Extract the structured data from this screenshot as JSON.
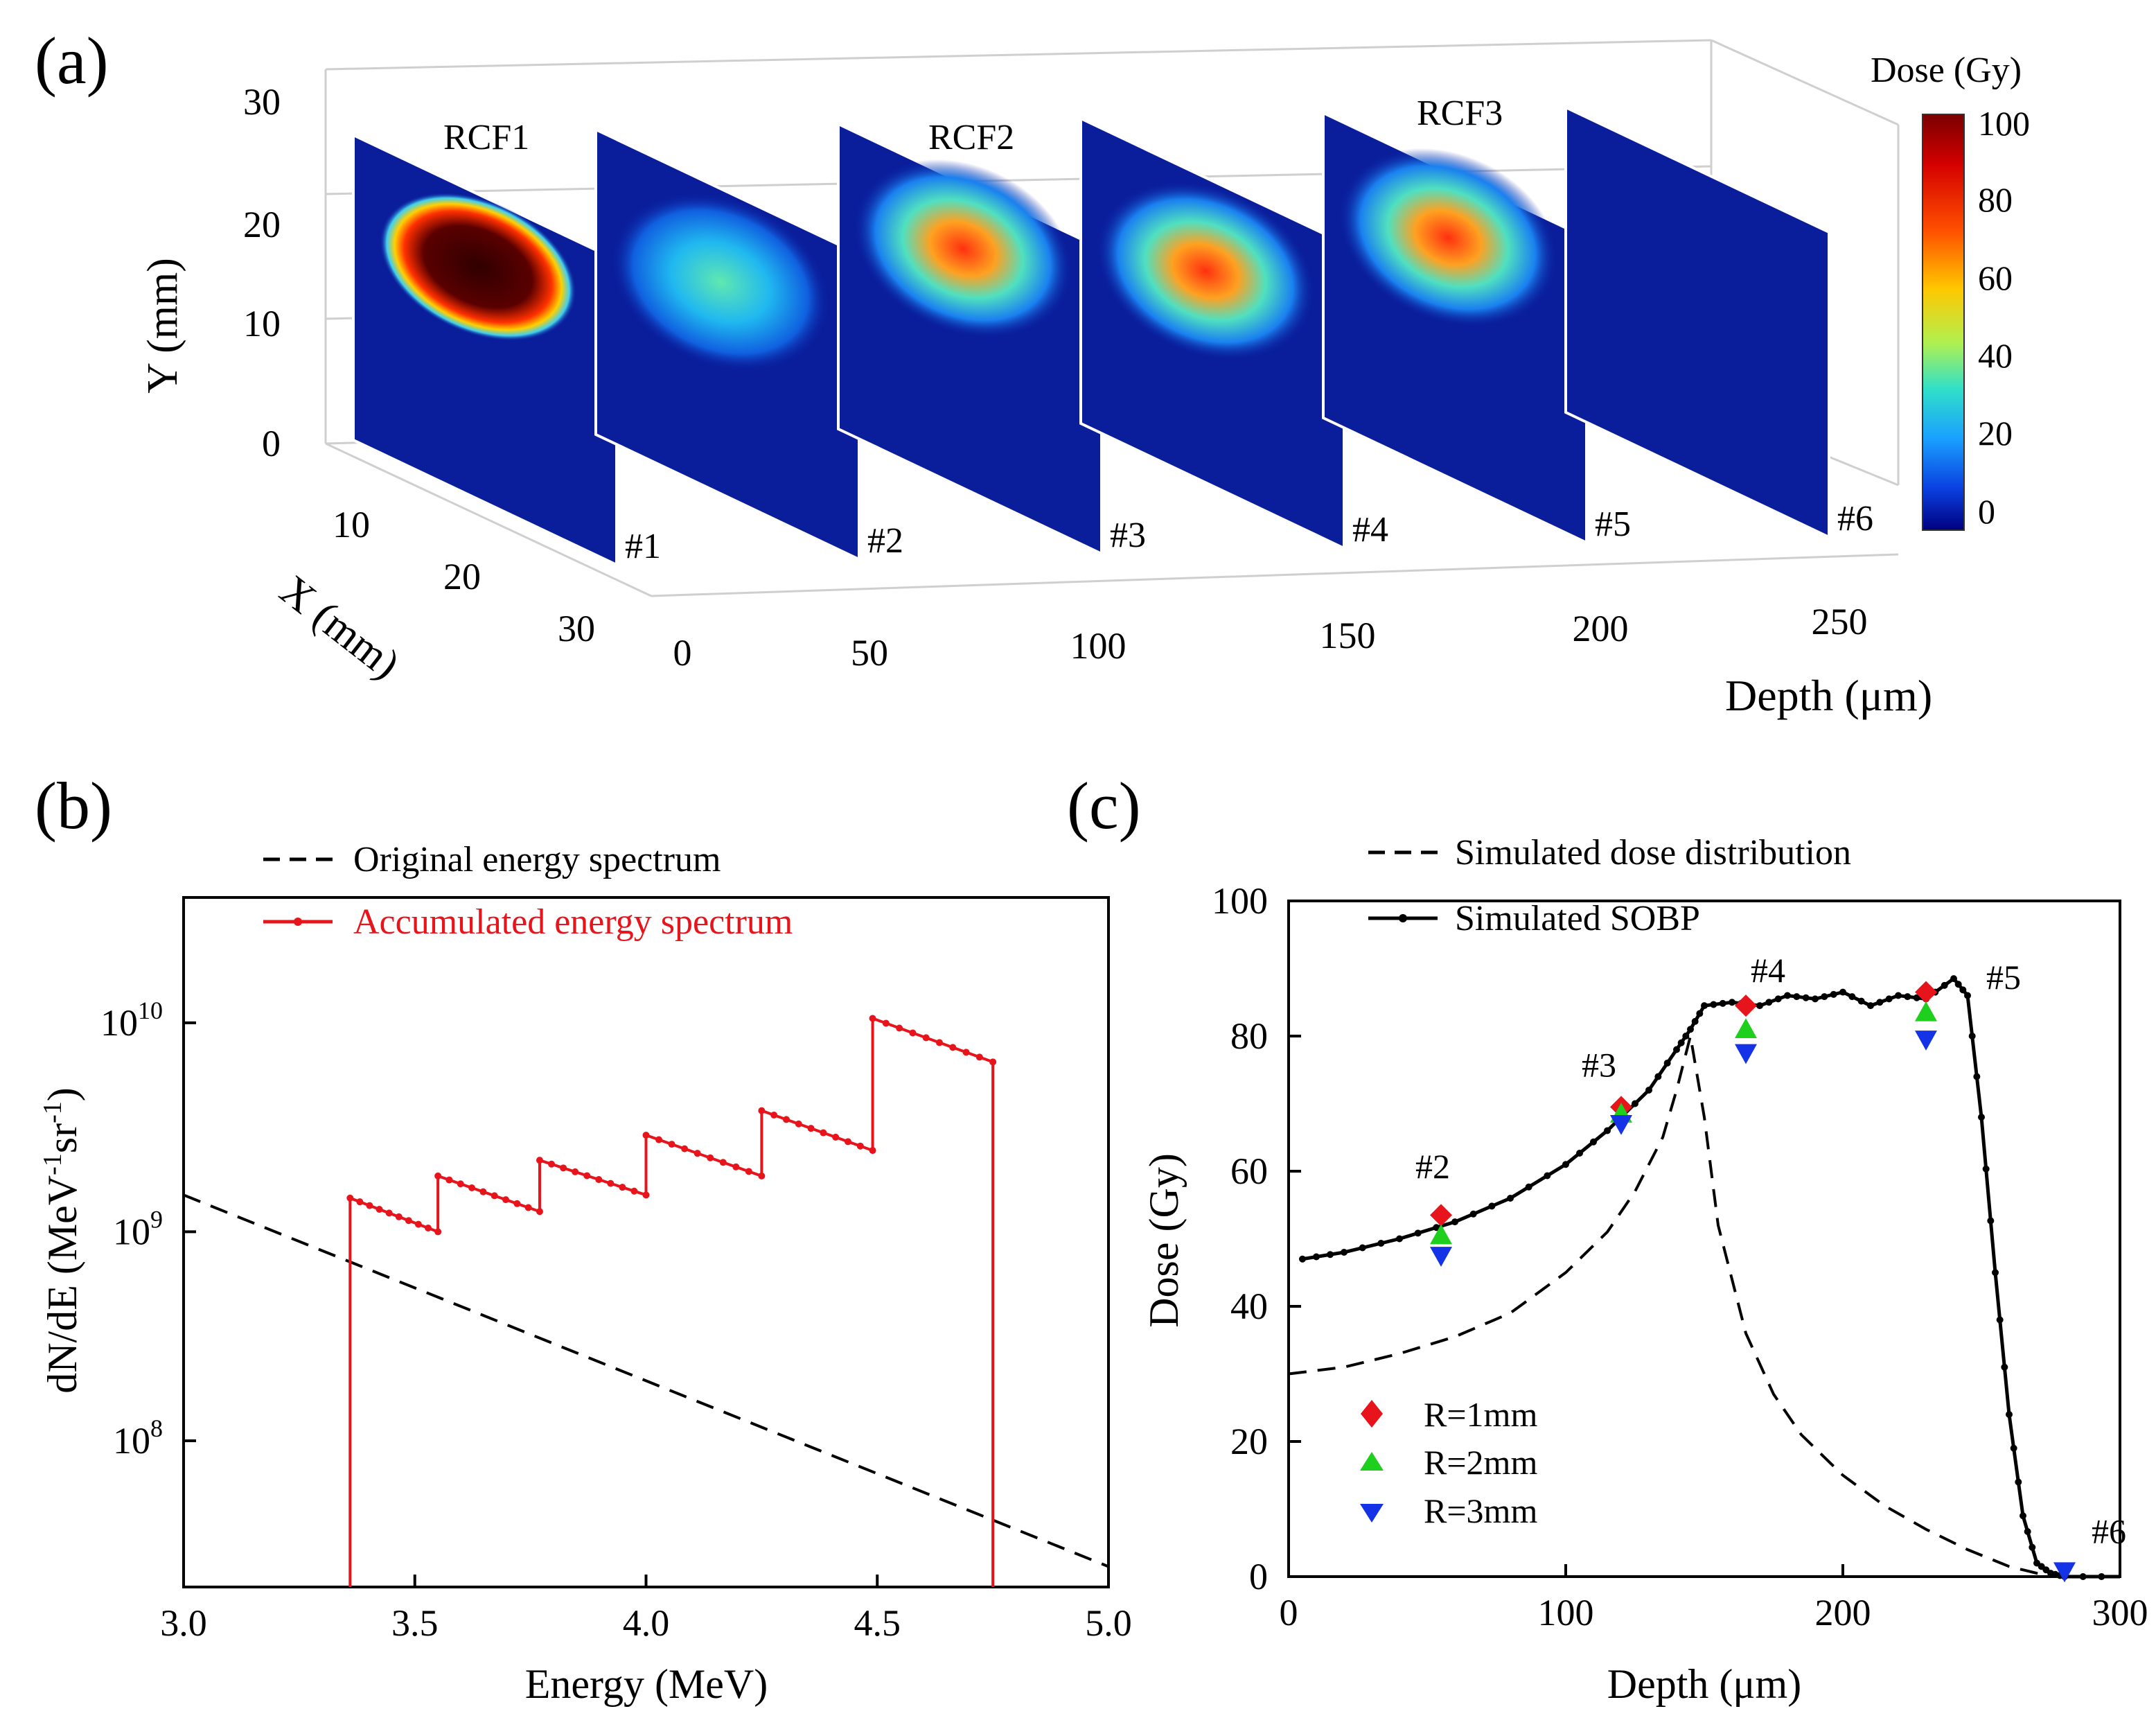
{
  "panel_labels": {
    "a": "(a)",
    "b": "(b)",
    "c": "(c)"
  },
  "colors": {
    "red": "#e8141c",
    "black": "#000000",
    "green": "#1ecf1e",
    "blue": "#1432e6",
    "film_bg": "#0a1e9c",
    "axis_gray": "#d8d8d8"
  },
  "chart_data": [
    {
      "type": "heatmap",
      "panel": "(a)",
      "title": "",
      "colorbar": {
        "title": "Dose (Gy)",
        "ticks": [
          "100",
          "80",
          "60",
          "40",
          "20",
          "0"
        ],
        "range": [
          0,
          100
        ]
      },
      "ylabel": "Y (mm)",
      "xlabel": "X (mm)",
      "zlabel": "Depth (μm)",
      "y_ticks": [
        "30",
        "20",
        "10",
        "0"
      ],
      "x_ticks": [
        "10",
        "20",
        "30"
      ],
      "depth_ticks": [
        "0",
        "50",
        "100",
        "150",
        "200",
        "250"
      ],
      "group_labels": [
        "RCF1",
        "RCF2",
        "RCF3"
      ],
      "films": [
        {
          "id": "#1",
          "depth": 0,
          "peak_dose": 100,
          "spot_level": "saturated"
        },
        {
          "id": "#2",
          "depth": 50,
          "peak_dose": 40,
          "spot_level": "low"
        },
        {
          "id": "#3",
          "depth": 100,
          "peak_dose": 75,
          "spot_level": "high"
        },
        {
          "id": "#4",
          "depth": 150,
          "peak_dose": 85,
          "spot_level": "high"
        },
        {
          "id": "#5",
          "depth": 200,
          "peak_dose": 88,
          "spot_level": "high"
        },
        {
          "id": "#6",
          "depth": 250,
          "peak_dose": 0,
          "spot_level": "none"
        }
      ]
    },
    {
      "type": "line",
      "panel": "(b)",
      "title": "",
      "xlabel": "Energy (MeV)",
      "ylabel": "dN/dE (MeV⁻¹sr⁻¹)",
      "ylabel_main": "dN/dE (MeV",
      "ylabel_sup1": "-1",
      "ylabel_mid": "sr",
      "ylabel_sup2": "-1",
      "ylabel_end": ")",
      "xlim": [
        3.0,
        5.0
      ],
      "ylim_log10": [
        7.3,
        10.6
      ],
      "x_ticks": [
        "3.0",
        "3.5",
        "4.0",
        "4.5",
        "5.0"
      ],
      "y_ticks": [
        {
          "base": "10",
          "exp": "8",
          "log10": 8
        },
        {
          "base": "10",
          "exp": "9",
          "log10": 9
        },
        {
          "base": "10",
          "exp": "10",
          "log10": 10
        }
      ],
      "legend": [
        "Original energy spectrum",
        "Accumulated energy spectrum"
      ],
      "series": [
        {
          "name": "Original energy spectrum",
          "style": "dashed",
          "x": [
            3.0,
            5.0
          ],
          "y": [
            1500000000.0,
            25000000.0
          ]
        },
        {
          "name": "Accumulated energy spectrum",
          "style": "solid-dotted",
          "segments": [
            {
              "x": [
                3.36,
                3.55
              ],
              "y": [
                1450000000.0,
                1000000000.0
              ]
            },
            {
              "x": [
                3.55,
                3.77
              ],
              "y": [
                1850000000.0,
                1250000000.0
              ]
            },
            {
              "x": [
                3.77,
                4.0
              ],
              "y": [
                2200000000.0,
                1500000000.0
              ]
            },
            {
              "x": [
                4.0,
                4.25
              ],
              "y": [
                2900000000.0,
                1850000000.0
              ]
            },
            {
              "x": [
                4.25,
                4.49
              ],
              "y": [
                3800000000.0,
                2450000000.0
              ]
            },
            {
              "x": [
                4.49,
                4.75
              ],
              "y": [
                10500000000.0,
                6500000000.0
              ]
            }
          ]
        }
      ]
    },
    {
      "type": "line",
      "panel": "(c)",
      "title": "",
      "xlabel": "Depth (μm)",
      "ylabel": "Dose (Gy)",
      "xlim": [
        0,
        300
      ],
      "ylim": [
        0,
        100
      ],
      "x_ticks": [
        "0",
        "100",
        "200",
        "300"
      ],
      "y_ticks": [
        "0",
        "20",
        "40",
        "60",
        "80",
        "100"
      ],
      "legend": [
        "Simulated dose distribution",
        "Simulated SOBP"
      ],
      "marker_legend": [
        "R=1mm",
        "R=2mm",
        "R=3mm"
      ],
      "series": [
        {
          "name": "Simulated dose distribution",
          "style": "dashed",
          "x": [
            0,
            20,
            40,
            60,
            80,
            100,
            115,
            125,
            135,
            140,
            145,
            150,
            155,
            165,
            175,
            185,
            200,
            215,
            230,
            245,
            260,
            270,
            280
          ],
          "y": [
            30,
            31,
            33,
            35.5,
            39,
            45,
            51,
            57,
            65,
            72,
            80,
            68,
            52,
            36,
            27,
            21,
            15,
            10.5,
            7,
            4,
            1.5,
            0.5,
            0
          ]
        },
        {
          "name": "Simulated SOBP",
          "style": "solid-dotted",
          "x": [
            5,
            20,
            40,
            60,
            80,
            100,
            115,
            130,
            140,
            145,
            150,
            160,
            170,
            180,
            190,
            200,
            210,
            220,
            230,
            240,
            245,
            250,
            255,
            260,
            265,
            270,
            275,
            280,
            300
          ],
          "y": [
            47,
            48,
            50,
            52.5,
            56,
            61,
            66,
            72,
            78,
            81,
            84.5,
            85,
            84.5,
            86,
            85.5,
            86.5,
            84.5,
            86,
            85.5,
            88.5,
            86,
            68,
            45,
            24,
            9,
            2,
            0.5,
            0,
            0
          ]
        },
        {
          "name": "R=1mm",
          "marker": "diamond",
          "x": [
            55,
            120,
            165,
            230
          ],
          "y": [
            53.5,
            69.5,
            84.5,
            86.5
          ]
        },
        {
          "name": "R=2mm",
          "marker": "triangle-up",
          "x": [
            55,
            120,
            165,
            230
          ],
          "y": [
            50.5,
            68.5,
            81,
            83.5
          ]
        },
        {
          "name": "R=3mm",
          "marker": "triangle-down",
          "x": [
            55,
            120,
            165,
            230,
            280
          ],
          "y": [
            47.5,
            67,
            77.5,
            79.5,
            0.8
          ]
        }
      ],
      "annotations": [
        {
          "text": "#2",
          "x": 52,
          "y": 59
        },
        {
          "text": "#3",
          "x": 112,
          "y": 74
        },
        {
          "text": "#4",
          "x": 173,
          "y": 88
        },
        {
          "text": "#5",
          "x": 258,
          "y": 87
        },
        {
          "text": "#6",
          "x": 296,
          "y": 5
        }
      ]
    }
  ]
}
